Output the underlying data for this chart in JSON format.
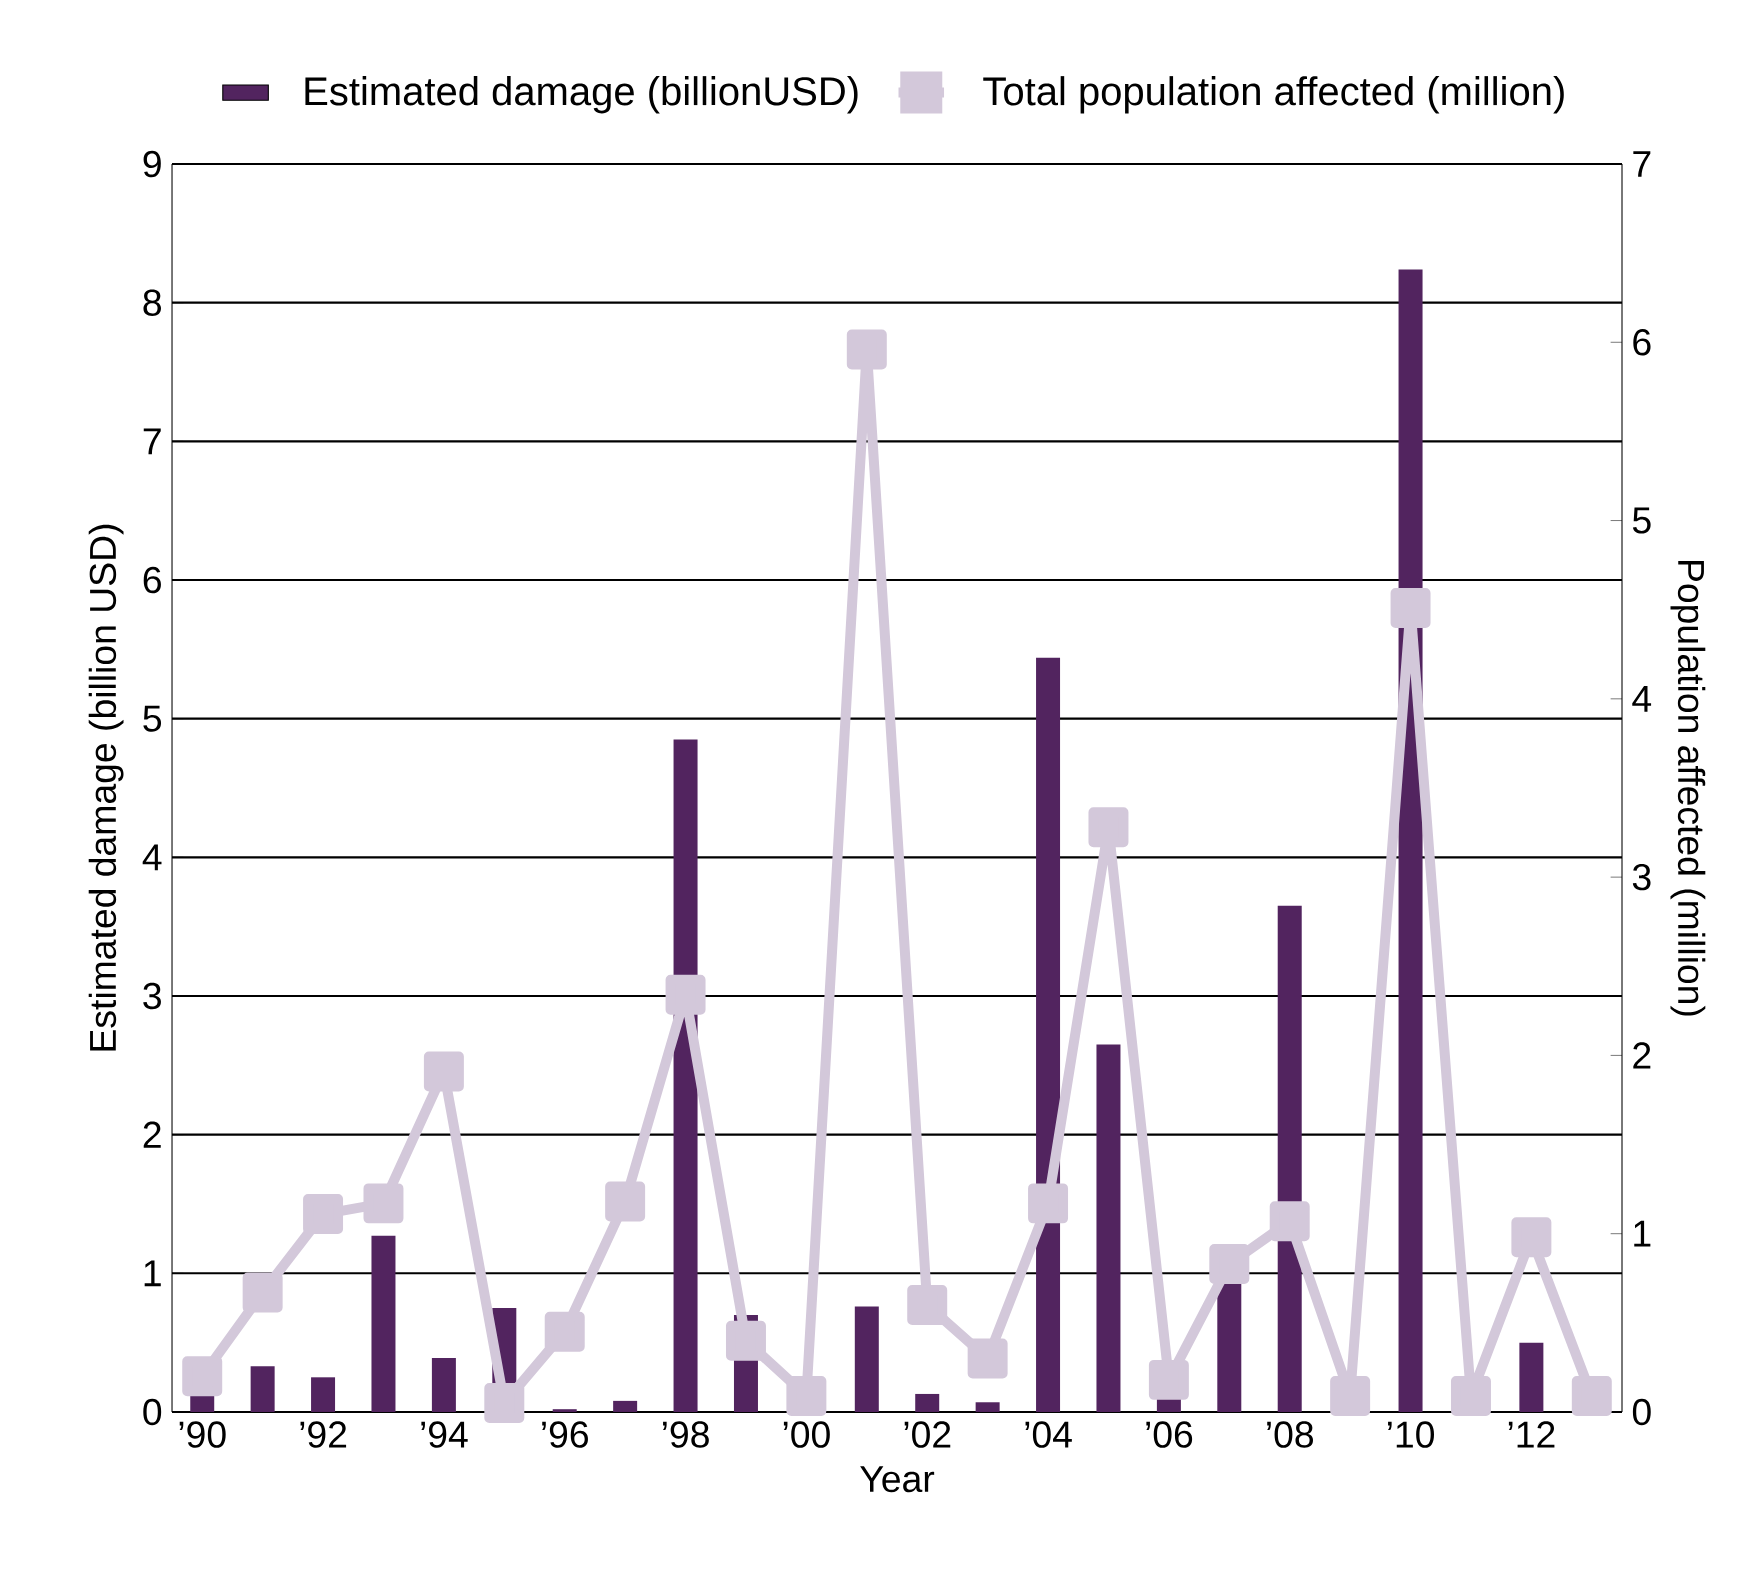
{
  "chart_data": {
    "type": "bar",
    "categories": [
      "’90",
      null,
      "’92",
      null,
      "’94",
      null,
      "’96",
      null,
      "’98",
      null,
      "’00",
      null,
      "’02",
      null,
      "’04",
      null,
      "’06",
      null,
      "’08",
      null,
      "’10",
      null,
      "’12",
      null
    ],
    "series": [
      {
        "name": "Estimated damage (billionUSD)",
        "color": "#52245f",
        "values": [
          0.15,
          0.33,
          0.25,
          1.27,
          0.39,
          0.75,
          0.02,
          0.08,
          4.85,
          0.7,
          null,
          0.76,
          0.13,
          0.07,
          5.44,
          2.65,
          0.1,
          0.95,
          3.65,
          0,
          8.24,
          0,
          0.5,
          0
        ]
      },
      {
        "name": "Total population affected (million)",
        "type": "line",
        "axis": "y2",
        "color": "#d3c8da",
        "values": [
          0.2,
          0.67,
          1.11,
          1.17,
          1.91,
          0.05,
          0.45,
          1.18,
          2.34,
          0.4,
          0.09,
          5.96,
          0.6,
          0.3,
          1.17,
          3.28,
          0.18,
          0.83,
          1.07,
          0.09,
          4.51,
          0.09,
          0.98,
          0.09
        ]
      }
    ],
    "xlabel": "Year",
    "ylabel": "Estimated damage (billion USD)",
    "y2label": "Population affected (million)",
    "ylim": [
      0,
      9
    ],
    "yticks": [
      0,
      1,
      2,
      3,
      4,
      5,
      6,
      7,
      8,
      9
    ],
    "y2lim": [
      0,
      7
    ],
    "y2ticks": [
      0,
      1,
      2,
      3,
      4,
      5,
      6,
      7
    ],
    "grid": "y",
    "legend": "top",
    "marker": "square"
  }
}
